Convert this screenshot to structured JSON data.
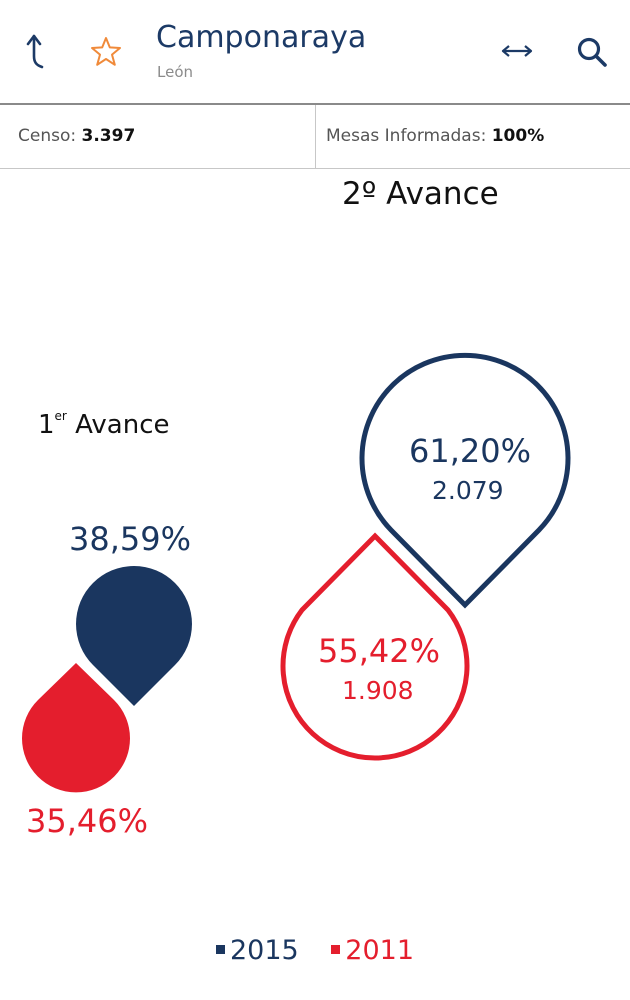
{
  "header": {
    "title": "Camponaraya",
    "subtitle": "León",
    "icons": [
      "back-arrow-icon",
      "star-outline-icon",
      "expand-horizontal-icon",
      "search-icon"
    ]
  },
  "stats": {
    "censo_label": "Censo:",
    "censo_value": "3.397",
    "mesas_label": "Mesas Informadas:",
    "mesas_value": "100%"
  },
  "second_avance": {
    "heading": "2º Avance",
    "year_2015": {
      "percent": "61,20%",
      "count": "2.079",
      "percent_value": 61.2
    },
    "year_2011": {
      "percent": "55,42%",
      "count": "1.908",
      "percent_value": 55.42
    }
  },
  "first_avance": {
    "heading_num": "1",
    "heading_sup": "er",
    "heading_text": "Avance",
    "year_2015": {
      "percent": "38,59%",
      "percent_value": 38.59
    },
    "year_2011": {
      "percent": "35,46%",
      "percent_value": 35.46
    }
  },
  "legend": [
    {
      "label": "2015",
      "color": "#1a365f"
    },
    {
      "label": "2011",
      "color": "#e41e2d"
    }
  ],
  "colors": {
    "navy": "#1a365f",
    "red": "#e41e2d",
    "star": "#f08a3a"
  }
}
